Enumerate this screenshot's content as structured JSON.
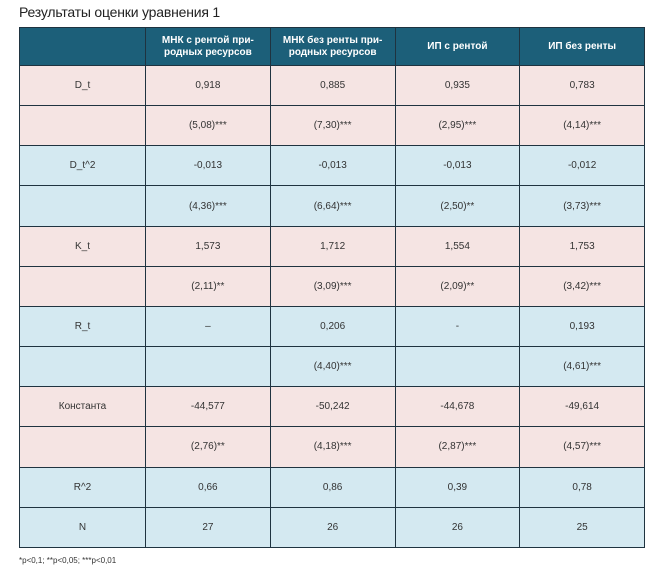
{
  "title": "Результаты оценки уравнения 1",
  "header": [
    "",
    "МНК с рентой при-\nродных ресурсов",
    "МНК без ренты при-\nродных ресурсов",
    "ИП с рентой",
    "ИП без ренты"
  ],
  "rows": [
    {
      "style": "pink",
      "cells": [
        "D_t",
        "0,918",
        "0,885",
        "0,935",
        "0,783"
      ]
    },
    {
      "style": "pink",
      "cells": [
        "",
        "(5,08)***",
        "(7,30)***",
        "(2,95)***",
        "(4,14)***"
      ]
    },
    {
      "style": "blue",
      "cells": [
        "D_t^2",
        "-0,013",
        "-0,013",
        "-0,013",
        "-0,012"
      ]
    },
    {
      "style": "blue",
      "cells": [
        "",
        "(4,36)***",
        "(6,64)***",
        "(2,50)**",
        "(3,73)***"
      ]
    },
    {
      "style": "pink",
      "cells": [
        "K_t",
        "1,573",
        "1,712",
        "1,554",
        "1,753"
      ]
    },
    {
      "style": "pink",
      "cells": [
        "",
        "(2,11)**",
        "(3,09)***",
        "(2,09)**",
        "(3,42)***"
      ]
    },
    {
      "style": "blue",
      "cells": [
        "R_t",
        "–",
        "0,206",
        "-",
        "0,193"
      ]
    },
    {
      "style": "blue",
      "cells": [
        "",
        "",
        "(4,40)***",
        "",
        "(4,61)***"
      ]
    },
    {
      "style": "pink",
      "cells": [
        "Константа",
        "-44,577",
        "-50,242",
        "-44,678",
        "-49,614"
      ]
    },
    {
      "style": "pink",
      "cells": [
        "",
        "(2,76)**",
        "(4,18)***",
        "(2,87)***",
        "(4,57)***"
      ]
    },
    {
      "style": "blue",
      "cells": [
        "R^2",
        "0,66",
        "0,86",
        "0,39",
        "0,78"
      ]
    },
    {
      "style": "blue",
      "cells": [
        "N",
        "27",
        "26",
        "26",
        "25"
      ]
    }
  ],
  "footnote": "*p<0,1; **p<0,05; ***p<0,01",
  "colors": {
    "header_bg": "#1c5f79",
    "pink_row": "#f5e4e3",
    "blue_row": "#d4e9f1",
    "border": "#1f3340"
  }
}
